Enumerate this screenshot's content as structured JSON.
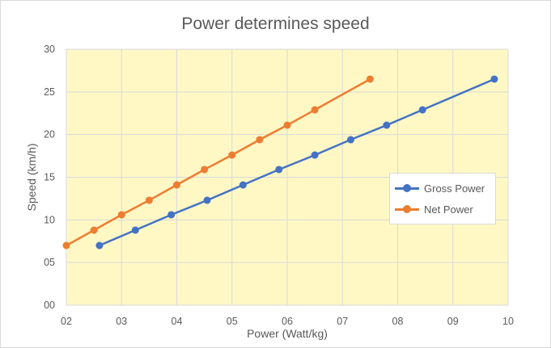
{
  "chart_data": {
    "type": "line",
    "title": "Power determines speed",
    "xlabel": "Power (Watt/kg)",
    "ylabel": "Speed (km/h)",
    "xlim": [
      2,
      10
    ],
    "ylim": [
      0,
      30
    ],
    "x_ticks": [
      "02",
      "03",
      "04",
      "05",
      "06",
      "07",
      "08",
      "09",
      "10"
    ],
    "y_ticks": [
      "00",
      "05",
      "10",
      "15",
      "20",
      "25",
      "30"
    ],
    "grid": true,
    "plot_background": "#fff8c5",
    "legend": "right",
    "series": [
      {
        "name": "Gross Power",
        "color": "#4472c4",
        "x": [
          2.6,
          3.25,
          3.9,
          4.55,
          5.2,
          5.85,
          6.5,
          7.15,
          7.8,
          8.45,
          9.75
        ],
        "y": [
          7.0,
          8.8,
          10.6,
          12.3,
          14.1,
          15.9,
          17.6,
          19.4,
          21.1,
          22.9,
          26.5
        ]
      },
      {
        "name": "Net Power",
        "color": "#ed7d31",
        "x": [
          2.0,
          2.5,
          3.0,
          3.5,
          4.0,
          4.5,
          5.0,
          5.5,
          6.0,
          6.5,
          7.5
        ],
        "y": [
          7.0,
          8.8,
          10.6,
          12.3,
          14.1,
          15.9,
          17.6,
          19.4,
          21.1,
          22.9,
          26.5
        ]
      }
    ]
  }
}
